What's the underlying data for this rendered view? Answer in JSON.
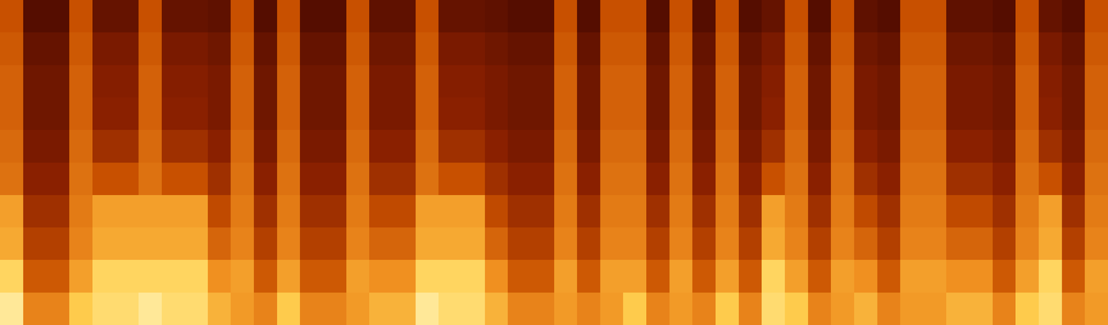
{
  "chart_data": {
    "type": "heatmap",
    "grid": false,
    "tick_labels": false,
    "zlim": [
      0,
      100
    ],
    "cells": [
      [
        97,
        72,
        72,
        87,
        92,
        92,
        97,
        92,
        92,
        82,
        77,
        72,
        87,
        72,
        72,
        77,
        82,
        82,
        97,
        92,
        92,
        82,
        72,
        72,
        77,
        72,
        77,
        87,
        72,
        77,
        72,
        87,
        72,
        92,
        87,
        72,
        77,
        82,
        72,
        77,
        77,
        82,
        82,
        72,
        87,
        92,
        72,
        77
      ],
      [
        90,
        62,
        62,
        78,
        90,
        90,
        90,
        90,
        90,
        75,
        78,
        62,
        78,
        62,
        62,
        78,
        75,
        75,
        90,
        90,
        90,
        75,
        62,
        62,
        78,
        62,
        78,
        78,
        62,
        78,
        62,
        78,
        62,
        90,
        78,
        62,
        78,
        75,
        62,
        78,
        78,
        75,
        75,
        62,
        78,
        90,
        62,
        78
      ],
      [
        80,
        55,
        55,
        72,
        80,
        80,
        80,
        80,
        80,
        65,
        72,
        55,
        72,
        55,
        55,
        72,
        65,
        65,
        80,
        80,
        80,
        65,
        55,
        55,
        72,
        55,
        72,
        72,
        55,
        72,
        55,
        72,
        55,
        80,
        72,
        55,
        72,
        65,
        55,
        72,
        72,
        65,
        65,
        55,
        72,
        80,
        55,
        72
      ],
      [
        78,
        50,
        50,
        70,
        78,
        78,
        78,
        78,
        78,
        58,
        70,
        50,
        70,
        50,
        50,
        70,
        58,
        58,
        78,
        78,
        78,
        58,
        50,
        50,
        70,
        50,
        70,
        70,
        50,
        70,
        50,
        70,
        50,
        78,
        70,
        50,
        70,
        58,
        50,
        70,
        70,
        58,
        58,
        50,
        70,
        78,
        50,
        70
      ],
      [
        68,
        45,
        45,
        68,
        60,
        60,
        68,
        60,
        60,
        50,
        68,
        45,
        68,
        45,
        45,
        68,
        50,
        50,
        68,
        60,
        60,
        50,
        45,
        45,
        68,
        45,
        68,
        68,
        45,
        68,
        45,
        68,
        45,
        60,
        68,
        45,
        68,
        50,
        45,
        68,
        68,
        50,
        50,
        45,
        68,
        60,
        45,
        68
      ],
      [
        66,
        42,
        42,
        66,
        50,
        50,
        66,
        50,
        50,
        45,
        66,
        42,
        66,
        42,
        42,
        66,
        45,
        45,
        66,
        50,
        50,
        45,
        42,
        42,
        66,
        42,
        66,
        66,
        42,
        66,
        42,
        66,
        42,
        50,
        66,
        42,
        66,
        45,
        42,
        66,
        66,
        45,
        45,
        42,
        66,
        50,
        42,
        66
      ],
      [
        64,
        40,
        40,
        64,
        45,
        45,
        64,
        45,
        45,
        42,
        64,
        40,
        64,
        40,
        40,
        64,
        42,
        42,
        64,
        45,
        45,
        42,
        40,
        40,
        64,
        40,
        64,
        64,
        40,
        64,
        40,
        64,
        40,
        45,
        64,
        40,
        64,
        42,
        40,
        64,
        64,
        42,
        42,
        40,
        64,
        45,
        40,
        64
      ],
      [
        64,
        40,
        40,
        64,
        44,
        44,
        64,
        44,
        44,
        42,
        64,
        40,
        64,
        40,
        40,
        64,
        42,
        42,
        64,
        44,
        44,
        42,
        40,
        40,
        64,
        40,
        64,
        64,
        40,
        64,
        40,
        64,
        40,
        44,
        64,
        40,
        64,
        42,
        40,
        64,
        64,
        42,
        42,
        40,
        64,
        44,
        40,
        64
      ],
      [
        62,
        38,
        38,
        62,
        42,
        42,
        62,
        42,
        42,
        40,
        62,
        38,
        62,
        38,
        38,
        62,
        40,
        40,
        62,
        42,
        42,
        40,
        38,
        38,
        62,
        38,
        62,
        62,
        38,
        62,
        38,
        62,
        38,
        42,
        62,
        38,
        62,
        40,
        38,
        62,
        62,
        40,
        40,
        38,
        62,
        42,
        38,
        62
      ],
      [
        60,
        35,
        35,
        60,
        38,
        38,
        60,
        38,
        38,
        37,
        60,
        35,
        60,
        35,
        35,
        60,
        37,
        37,
        60,
        38,
        38,
        37,
        35,
        35,
        60,
        35,
        60,
        60,
        35,
        60,
        35,
        60,
        35,
        38,
        60,
        35,
        60,
        37,
        35,
        60,
        60,
        37,
        37,
        35,
        60,
        38,
        35,
        60
      ]
    ]
  }
}
